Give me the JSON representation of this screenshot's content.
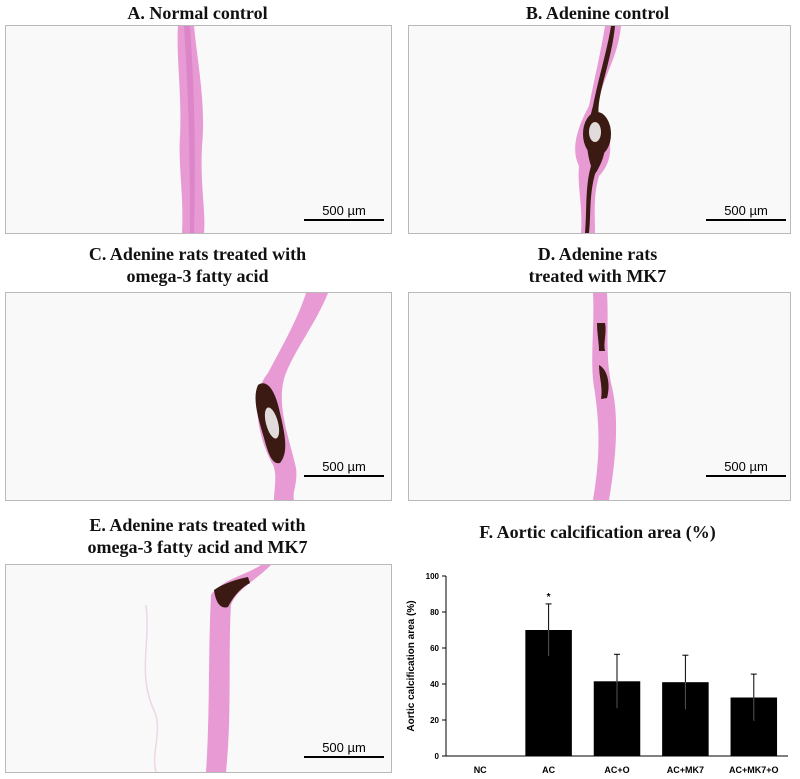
{
  "panels": {
    "a": {
      "caption_lines": [
        "A. Normal control"
      ],
      "scale_label": "500 µm"
    },
    "b": {
      "caption_lines": [
        "B. Adenine control"
      ],
      "scale_label": "500 µm"
    },
    "c": {
      "caption_lines": [
        "C. Adenine rats treated with",
        "omega-3 fatty acid"
      ],
      "scale_label": "500 µm"
    },
    "d": {
      "caption_lines": [
        "D. Adenine rats",
        "treated with MK7"
      ],
      "scale_label": "500 µm"
    },
    "e": {
      "caption_lines": [
        "E. Adenine rats treated with",
        "omega-3 fatty acid and MK7"
      ],
      "scale_label": "500 µm"
    }
  },
  "colors": {
    "tissue_pink": "#e58fcf",
    "calcification": "#3a1a12",
    "bar_fill": "#000000"
  },
  "chart_title": "F. Aortic calcification area (%)",
  "chart_data": {
    "type": "bar",
    "categories": [
      "NC",
      "AC",
      "AC+O",
      "AC+MK7",
      "AC+MK7+O"
    ],
    "values": [
      0,
      70,
      41.5,
      41,
      32.5
    ],
    "errors": [
      0,
      14.5,
      15,
      15,
      13
    ],
    "annotations": [
      "",
      "*",
      "",
      "",
      ""
    ],
    "ylabel": "Aortic calcification area (%)",
    "ylim": [
      0,
      100
    ],
    "yticks": [
      0,
      20,
      40,
      60,
      80,
      100
    ],
    "grid": false
  }
}
